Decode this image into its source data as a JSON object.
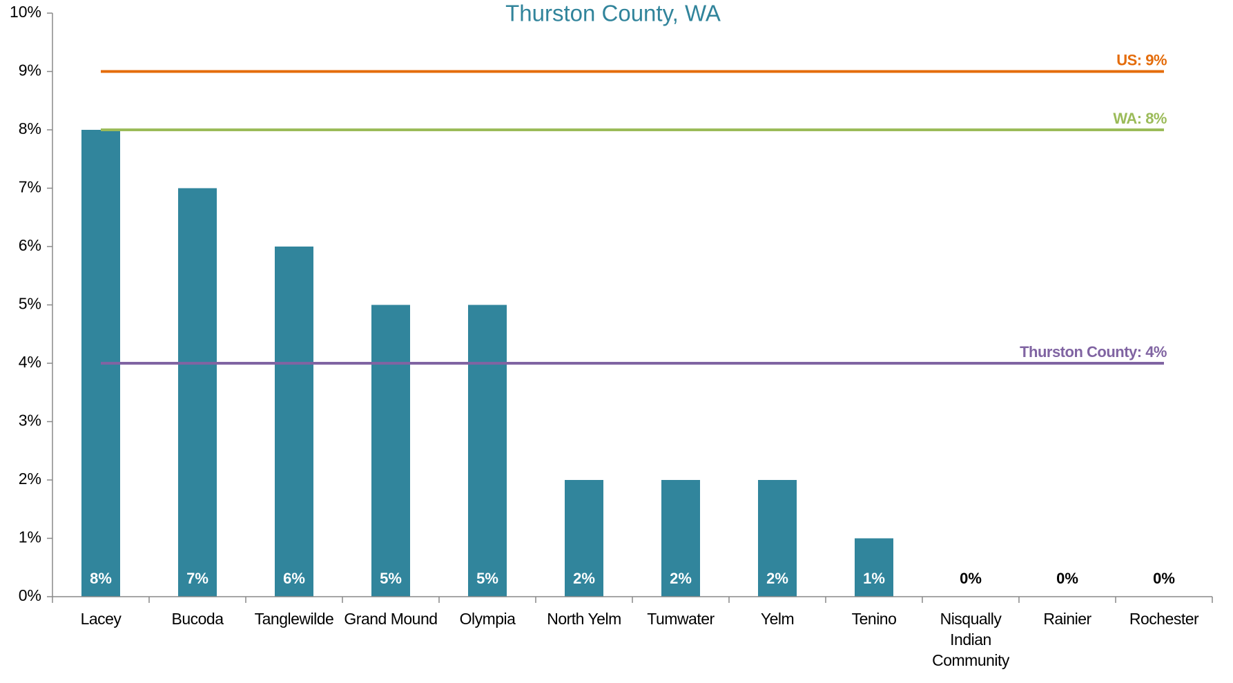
{
  "chart_data": {
    "type": "bar",
    "title": "Thurston County, WA",
    "categories": [
      "Lacey",
      "Bucoda",
      "Tanglewilde",
      "Grand Mound",
      "Olympia",
      "North Yelm",
      "Tumwater",
      "Yelm",
      "Tenino",
      "Nisqually Indian Community",
      "Rainier",
      "Rochester"
    ],
    "values": [
      8,
      7,
      6,
      5,
      5,
      2,
      2,
      2,
      1,
      0,
      0,
      0
    ],
    "value_labels": [
      "8%",
      "7%",
      "6%",
      "5%",
      "5%",
      "2%",
      "2%",
      "2%",
      "1%",
      "0%",
      "0%",
      "0%"
    ],
    "color": "#31859c",
    "ylim": [
      0,
      10
    ],
    "yticks": [
      {
        "value": 0,
        "label": "0%"
      },
      {
        "value": 1,
        "label": "1%"
      },
      {
        "value": 2,
        "label": "2%"
      },
      {
        "value": 3,
        "label": "3%"
      },
      {
        "value": 4,
        "label": "4%"
      },
      {
        "value": 5,
        "label": "5%"
      },
      {
        "value": 6,
        "label": "6%"
      },
      {
        "value": 7,
        "label": "7%"
      },
      {
        "value": 8,
        "label": "8%"
      },
      {
        "value": 9,
        "label": "9%"
      },
      {
        "value": 10,
        "label": "10%"
      }
    ],
    "reference_lines": [
      {
        "name": "US",
        "value": 9,
        "label": "US: 9%",
        "color": "#e46c0a"
      },
      {
        "name": "WA",
        "value": 8,
        "label": "WA: 8%",
        "color": "#9bbb59"
      },
      {
        "name": "Thurston County",
        "value": 4,
        "label": "Thurston County: 4%",
        "color": "#8064a2"
      }
    ]
  }
}
